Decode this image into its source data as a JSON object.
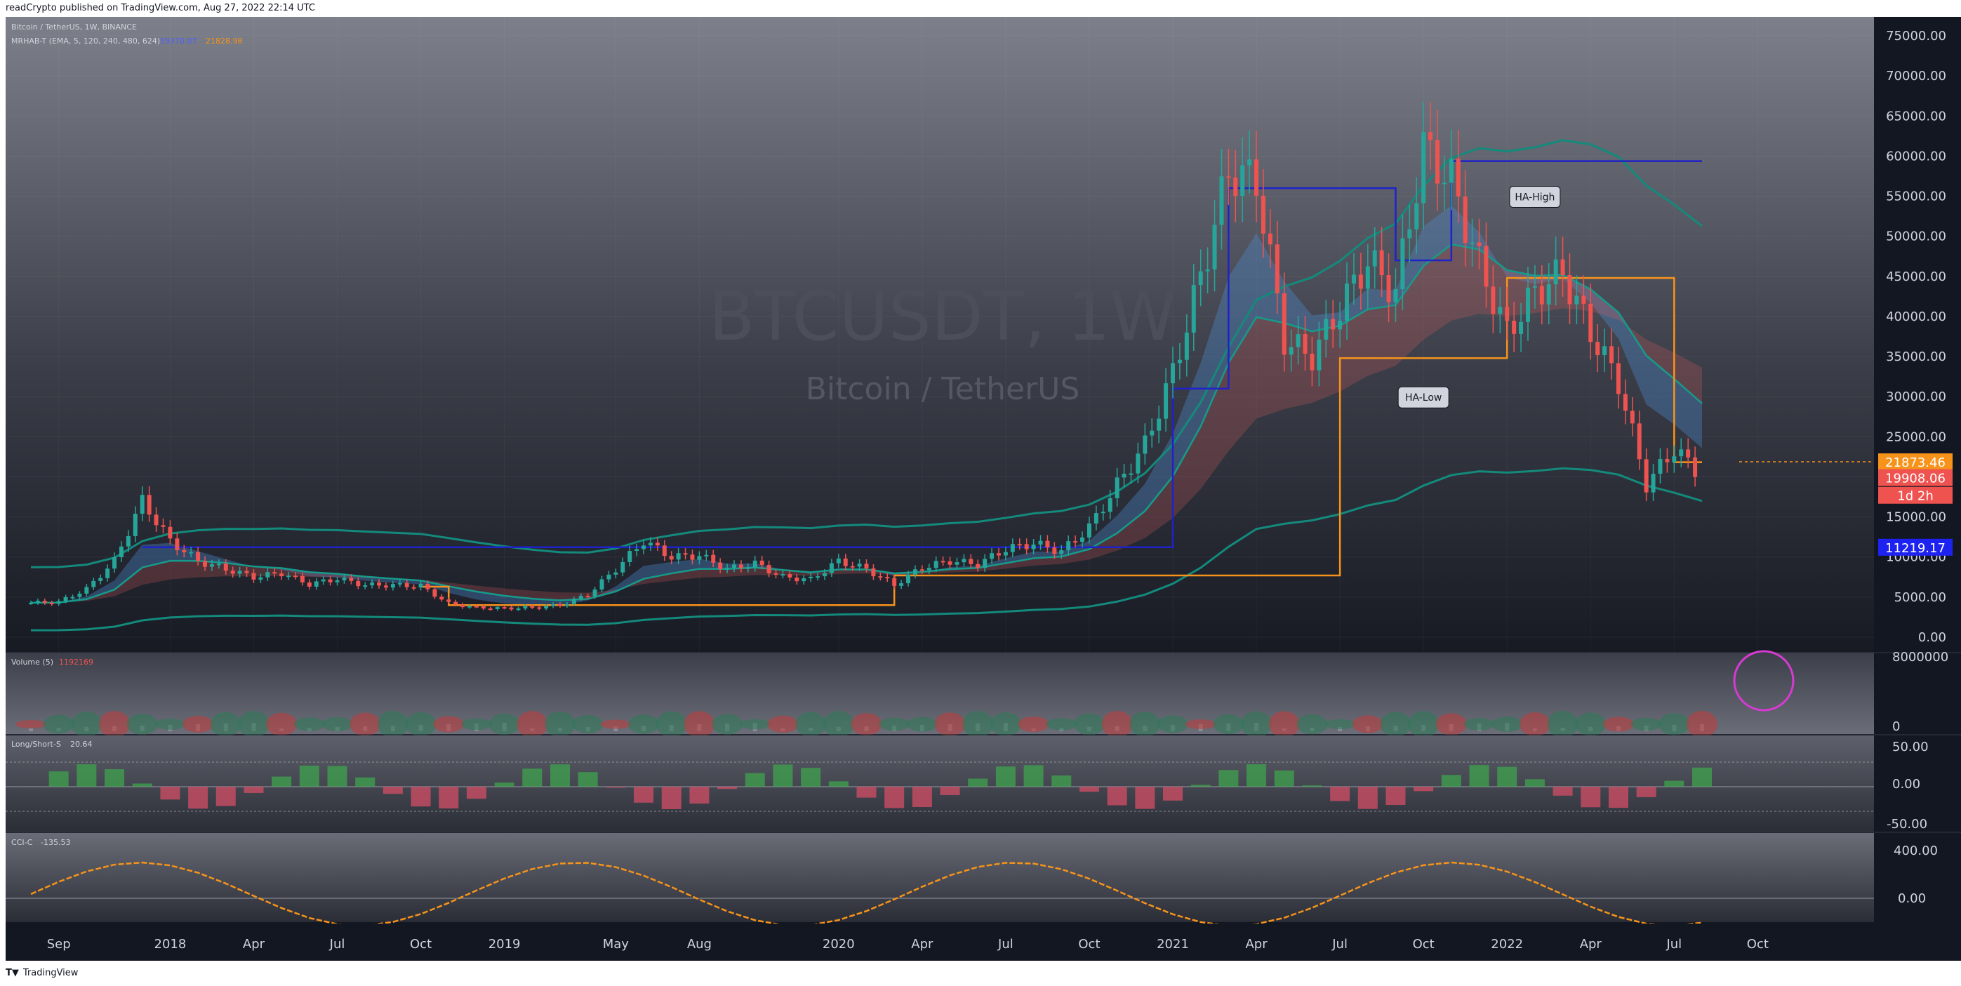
{
  "header": {
    "published": "readCrypto published on TradingView.com, Aug 27, 2022 22:14 UTC"
  },
  "footer": {
    "brand": "TradingView"
  },
  "watermark": {
    "symbol": "BTCUSDT, 1W",
    "name": "Bitcoin / TetherUS"
  },
  "legend": {
    "main": "Bitcoin / TetherUS, 1W, BINANCE",
    "indicator": "MRHAB-T (EMA, 5, 120, 240, 480, 624)",
    "indicator_values": [
      "59370.07",
      "21828.98"
    ]
  },
  "colors": {
    "background": "#131722",
    "up": "#26a69a",
    "down": "#ef5350",
    "orange": "#f7931a",
    "blue": "#1e22c8",
    "teal": "#0f7a6e"
  },
  "price_axis": {
    "labels": [
      "75000.00",
      "70000.00",
      "65000.00",
      "60000.00",
      "55000.00",
      "50000.00",
      "45000.00",
      "40000.00",
      "35000.00",
      "30000.00",
      "25000.00",
      "20000.00",
      "15000.00",
      "10000.00",
      "5000.00",
      "0.00"
    ],
    "badges": [
      {
        "text": "21873.46",
        "value": 21873.46,
        "color": "#f7931a"
      },
      {
        "text": "19908.06",
        "value": 19908.06,
        "color": "#ef5350"
      },
      {
        "text": "1d 2h",
        "value": 17700,
        "color": "#ef5350"
      },
      {
        "text": "11219.17",
        "value": 11219.17,
        "color": "#1e22f0"
      }
    ]
  },
  "time_axis": [
    "Sep",
    "2018",
    "Apr",
    "Jul",
    "Oct",
    "2019",
    "May",
    "Aug",
    "2020",
    "Apr",
    "Jul",
    "Oct",
    "2021",
    "Apr",
    "Jul",
    "Oct",
    "2022",
    "Apr",
    "Jul",
    "Oct"
  ],
  "annotations": [
    {
      "text": "HA-High",
      "x": "2022-02",
      "y": 55000
    },
    {
      "text": "HA-Low",
      "x": "2021-10",
      "y": 30000
    }
  ],
  "panes": [
    {
      "title": "Volume (5)",
      "value": "1192169",
      "axis": [
        "8000000",
        "0"
      ]
    },
    {
      "title": "Long/Short-S",
      "value": "20.64",
      "axis": [
        "50.00",
        "0.00",
        "-50.00"
      ]
    },
    {
      "title": "CCI-C",
      "value": "-135.53",
      "axis": [
        "400.00",
        "0.00"
      ]
    }
  ],
  "chart_data": {
    "type": "line",
    "title": "BTCUSDT, 1W",
    "subtitle": "Bitcoin / TetherUS",
    "xlabel": "",
    "ylabel": "",
    "ylim": [
      0,
      75000
    ],
    "x": [
      "2017-08",
      "2017-09",
      "2017-10",
      "2017-11",
      "2017-12",
      "2018-01",
      "2018-02",
      "2018-03",
      "2018-04",
      "2018-05",
      "2018-06",
      "2018-07",
      "2018-08",
      "2018-09",
      "2018-10",
      "2018-11",
      "2018-12",
      "2019-01",
      "2019-02",
      "2019-03",
      "2019-04",
      "2019-05",
      "2019-06",
      "2019-07",
      "2019-08",
      "2019-09",
      "2019-10",
      "2019-11",
      "2019-12",
      "2020-01",
      "2020-02",
      "2020-03",
      "2020-04",
      "2020-05",
      "2020-06",
      "2020-07",
      "2020-08",
      "2020-09",
      "2020-10",
      "2020-11",
      "2020-12",
      "2021-01",
      "2021-02",
      "2021-03",
      "2021-04",
      "2021-05",
      "2021-06",
      "2021-07",
      "2021-08",
      "2021-09",
      "2021-10",
      "2021-11",
      "2021-12",
      "2022-01",
      "2022-02",
      "2022-03",
      "2022-04",
      "2022-05",
      "2022-06",
      "2022-07",
      "2022-08"
    ],
    "series": [
      {
        "values": [
          4300,
          4400,
          6000,
          9500,
          17000,
          12000,
          9500,
          8500,
          7500,
          8000,
          6600,
          7300,
          6500,
          6500,
          6400,
          4200,
          3700,
          3600,
          3700,
          4000,
          5300,
          8500,
          12000,
          10000,
          10200,
          8500,
          9200,
          7500,
          7200,
          9500,
          8500,
          6500,
          8700,
          9500,
          9100,
          11000,
          11700,
          10700,
          13700,
          19000,
          24000,
          33000,
          45000,
          58000,
          57000,
          37000,
          35000,
          41000,
          47000,
          43000,
          61000,
          57000,
          46500,
          38000,
          43000,
          45500,
          38000,
          31800,
          19000,
          23500,
          20000
        ]
      }
    ],
    "lines": {
      "HA-High": [
        {
          "x": "2017-12",
          "y": 11219
        },
        {
          "x": "2021-01",
          "y": 11219
        },
        {
          "x": "2021-01",
          "y": 31000
        },
        {
          "x": "2021-03",
          "y": 31000
        },
        {
          "x": "2021-03",
          "y": 56000
        },
        {
          "x": "2021-09",
          "y": 56000
        },
        {
          "x": "2021-09",
          "y": 47000
        },
        {
          "x": "2021-11",
          "y": 47000
        },
        {
          "x": "2021-11",
          "y": 59370
        },
        {
          "x": "2022-08",
          "y": 59370
        }
      ],
      "HA-Low": [
        {
          "x": "2018-10",
          "y": 6300
        },
        {
          "x": "2018-11",
          "y": 6300
        },
        {
          "x": "2018-11",
          "y": 4000
        },
        {
          "x": "2020-03",
          "y": 4000
        },
        {
          "x": "2020-03",
          "y": 7700
        },
        {
          "x": "2021-07",
          "y": 7700
        },
        {
          "x": "2021-07",
          "y": 34800
        },
        {
          "x": "2022-01",
          "y": 34800
        },
        {
          "x": "2022-01",
          "y": 44800
        },
        {
          "x": "2022-07",
          "y": 44800
        },
        {
          "x": "2022-07",
          "y": 21829
        },
        {
          "x": "2022-08",
          "y": 21829
        }
      ]
    }
  }
}
